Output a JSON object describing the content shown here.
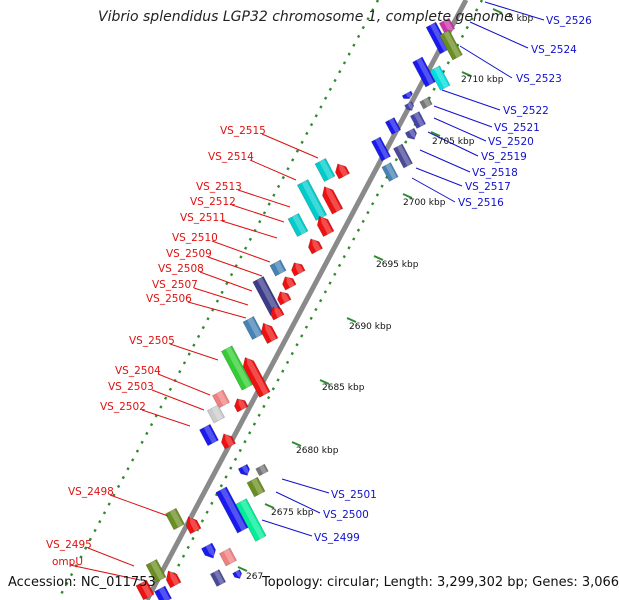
{
  "title": "Vibrio splendidus LGP32 chromosome 1, complete genome",
  "footer": {
    "accession": "Accession: NC_011753",
    "summary": "Topology: circular; Length: 3,299,302 bp; Genes: 3,066"
  },
  "colors": {
    "backbone": "#8a8a8a",
    "tick": "#2e8b2e",
    "left_label": "#dd1111",
    "right_label": "#1111cc"
  },
  "scale_ticks": [
    "2710 kbp",
    "2705 kbp",
    "2700 kbp",
    "2695 kbp",
    "2690 kbp",
    "2685 kbp",
    "2680 kbp",
    "2675 kbp",
    "267"
  ],
  "clipped_tick": "5 kbp",
  "left_labels": [
    "VS_2515",
    "VS_2514",
    "VS_2513",
    "VS_2512",
    "VS_2511",
    "VS_2510",
    "VS_2509",
    "VS_2508",
    "VS_2507",
    "VS_2506",
    "VS_2505",
    "VS_2504",
    "VS_2503",
    "VS_2502",
    "VS_2498",
    "VS_2495",
    "ompU"
  ],
  "right_labels": [
    "VS_2526",
    "VS_2524",
    "VS_2523",
    "VS_2522",
    "VS_2521",
    "VS_2520",
    "VS_2519",
    "VS_2518",
    "VS_2517",
    "VS_2516",
    "VS_2501",
    "VS_2500",
    "VS_2499"
  ]
}
